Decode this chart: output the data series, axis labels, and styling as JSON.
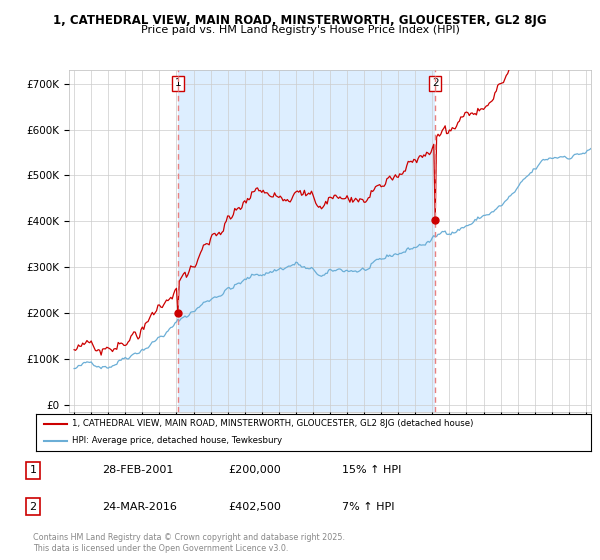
{
  "title1": "1, CATHEDRAL VIEW, MAIN ROAD, MINSTERWORTH, GLOUCESTER, GL2 8JG",
  "title2": "Price paid vs. HM Land Registry's House Price Index (HPI)",
  "yticks": [
    0,
    100000,
    200000,
    300000,
    400000,
    500000,
    600000,
    700000
  ],
  "ytick_labels": [
    "£0",
    "£100K",
    "£200K",
    "£300K",
    "£400K",
    "£500K",
    "£600K",
    "£700K"
  ],
  "ylim_min": -15000,
  "ylim_max": 730000,
  "xlim_start": 1994.7,
  "xlim_end": 2025.3,
  "sale1_t": 2001.083,
  "sale1_y": 200000,
  "sale2_t": 2016.167,
  "sale2_y": 402500,
  "legend_line1": "1, CATHEDRAL VIEW, MAIN ROAD, MINSTERWORTH, GLOUCESTER, GL2 8JG (detached house)",
  "legend_line2": "HPI: Average price, detached house, Tewkesbury",
  "line_color_red": "#cc0000",
  "line_color_blue": "#6baed6",
  "vline_color": "#e88080",
  "fill_color": "#ddeeff",
  "background_color": "#ffffff",
  "grid_color": "#cccccc",
  "footer": "Contains HM Land Registry data © Crown copyright and database right 2025.\nThis data is licensed under the Open Government Licence v3.0."
}
